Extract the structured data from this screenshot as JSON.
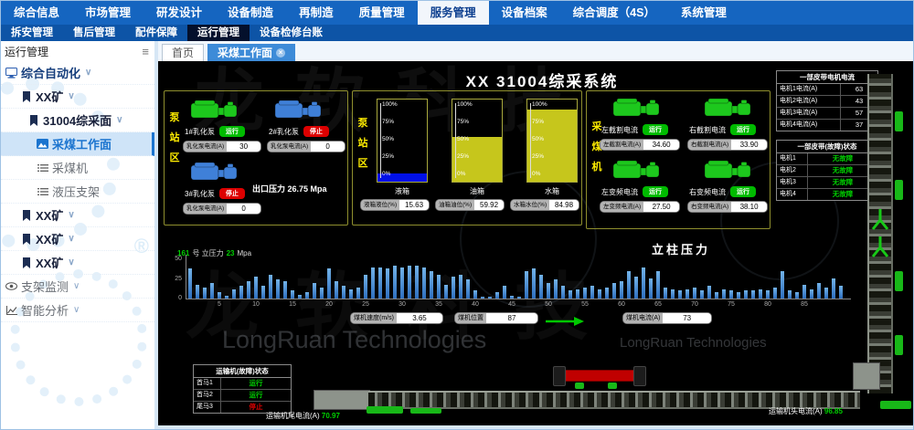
{
  "topnav": {
    "items": [
      "综合信息",
      "市场管理",
      "研发设计",
      "设备制造",
      "再制造",
      "质量管理",
      "服务管理",
      "设备档案",
      "综合调度（4S）",
      "系统管理"
    ],
    "active": "服务管理"
  },
  "subnav": {
    "items": [
      "拆安管理",
      "售后管理",
      "配件保障",
      "运行管理",
      "设备检修台账"
    ],
    "active": "运行管理"
  },
  "sidebar": {
    "title": "运行管理",
    "items": [
      {
        "label": "综合自动化",
        "icon": "monitor-icon",
        "level": 0,
        "expandable": true,
        "tone": "primary"
      },
      {
        "label": "XX矿",
        "icon": "bookmark-icon",
        "level": 1,
        "expandable": true,
        "tone": "dark"
      },
      {
        "label": "31004综采面",
        "icon": "bookmark-icon",
        "level": 2,
        "expandable": true,
        "tone": "dark"
      },
      {
        "label": "采煤工作面",
        "icon": "picture-icon",
        "level": 3,
        "selected": true,
        "tone": "primary"
      },
      {
        "label": "采煤机",
        "icon": "list-icon",
        "level": 3,
        "tone": "muted"
      },
      {
        "label": "液压支架",
        "icon": "list-icon",
        "level": 3,
        "tone": "muted"
      },
      {
        "label": "XX矿",
        "icon": "bookmark-icon",
        "level": 1,
        "expandable": true,
        "tone": "dark"
      },
      {
        "label": "XX矿",
        "icon": "bookmark-icon",
        "level": 1,
        "expandable": true,
        "tone": "dark"
      },
      {
        "label": "XX矿",
        "icon": "bookmark-icon",
        "level": 1,
        "expandable": true,
        "tone": "dark"
      },
      {
        "label": "支架监测",
        "icon": "eye-icon",
        "level": 0,
        "expandable": true,
        "tone": "muted"
      },
      {
        "label": "智能分析",
        "icon": "chart-icon",
        "level": 0,
        "expandable": true,
        "tone": "muted"
      }
    ]
  },
  "tabs": [
    {
      "label": "首页",
      "active": false,
      "closable": false
    },
    {
      "label": "采煤工作面",
      "active": true,
      "closable": true
    }
  ],
  "scada": {
    "title": "XX 31004综采系统",
    "pump_station": {
      "vlabel": "泵站区",
      "pumps": [
        {
          "name": "1#乳化泵",
          "status": "运行",
          "status_color": "#00bb00",
          "pump_color": "#1dc81d",
          "field_label": "乳化泵电流(A)",
          "value": "30"
        },
        {
          "name": "2#乳化泵",
          "status": "停止",
          "status_color": "#dd0000",
          "pump_color": "#3f80d8",
          "field_label": "乳化泵电流(A)",
          "value": "0"
        },
        {
          "name": "3#乳化泵",
          "status": "停止",
          "status_color": "#dd0000",
          "pump_color": "#3f80d8",
          "field_label": "乳化泵电流(A)",
          "value": "0"
        }
      ],
      "outlet_pressure": "出口压力 26.75 Mpa"
    },
    "tank_station": {
      "vlabel": "泵站区",
      "scale": [
        "100%",
        "75%",
        "50%",
        "25%",
        "0%"
      ],
      "tanks": [
        {
          "name": "液箱",
          "field_label": "液箱液位(%)",
          "value": "15.63",
          "fill_pct": 10,
          "fill_color": "#0010e8"
        },
        {
          "name": "油箱",
          "field_label": "油箱油位(%)",
          "value": "59.92",
          "fill_pct": 55,
          "fill_color": "#c6c61c"
        },
        {
          "name": "水箱",
          "field_label": "水箱水位(%)",
          "value": "84.98",
          "fill_pct": 88,
          "fill_color": "#c6c61c"
        }
      ]
    },
    "shearer_panel": {
      "vlabel": "采煤机",
      "motors": [
        {
          "name": "左截割电流",
          "status": "运行",
          "status_color": "#00bb00",
          "motor_color": "#1dc81d",
          "field_label": "左截割电流(A)",
          "value": "34.60"
        },
        {
          "name": "右截割电流",
          "status": "运行",
          "status_color": "#00bb00",
          "motor_color": "#1dc81d",
          "field_label": "右截割电流(A)",
          "value": "33.90"
        },
        {
          "name": "左变频电流",
          "status": "运行",
          "status_color": "#00bb00",
          "motor_color": "#1dc81d",
          "field_label": "左变频电流(A)",
          "value": "27.50"
        },
        {
          "name": "右变频电流",
          "status": "运行",
          "status_color": "#00bb00",
          "motor_color": "#1dc81d",
          "field_label": "右变频电流(A)",
          "value": "38.10"
        }
      ]
    },
    "belt_current_table": {
      "header": "一部皮带电机电流",
      "rows": [
        {
          "label": "电机1电流(A)",
          "value": "63"
        },
        {
          "label": "电机2电流(A)",
          "value": "43"
        },
        {
          "label": "电机3电流(A)",
          "value": "57"
        },
        {
          "label": "电机4电流(A)",
          "value": "37"
        }
      ]
    },
    "belt_status_table": {
      "header": "一部皮带(故障)状态",
      "rows": [
        {
          "label": "电机1",
          "status": "无故障",
          "color": "#00d000"
        },
        {
          "label": "电机2",
          "status": "无故障",
          "color": "#00d000"
        },
        {
          "label": "电机3",
          "status": "无故障",
          "color": "#00d000"
        },
        {
          "label": "电机4",
          "status": "无故障",
          "color": "#00d000"
        }
      ]
    },
    "shearer_fields": [
      {
        "label": "煤机速度(m/s)",
        "value": "3.65"
      },
      {
        "label": "煤机位置",
        "value": "87"
      },
      {
        "label": "煤机电流(A)",
        "value": "73"
      }
    ],
    "conveyor_status_table": {
      "header": "运输机(故障)状态",
      "rows": [
        {
          "label": "首马1",
          "status": "运行",
          "color": "#00d000"
        },
        {
          "label": "首马2",
          "status": "运行",
          "color": "#00d000"
        },
        {
          "label": "尾马3",
          "status": "停止",
          "color": "#e00000"
        }
      ]
    },
    "tail_current": {
      "label": "运输机尾电流(A)",
      "value": "70.97"
    },
    "head_current": {
      "label": "运输机头电流(A)",
      "value": "96.85"
    },
    "watermark": {
      "cn": "龙软科技",
      "en": "LongRuan Technologies",
      "reg": "®"
    }
  },
  "chart_data": {
    "type": "bar",
    "title": "立柱压力",
    "annotation": {
      "support_no": "161",
      "label": "号 立压力",
      "value": "23",
      "unit": "Mpa"
    },
    "ylabel": "压力(Mpa)",
    "y_ticks": [
      0,
      25,
      50
    ],
    "ylim": [
      0,
      50
    ],
    "x_ticks": [
      5,
      10,
      15,
      20,
      25,
      30,
      35,
      40,
      45,
      50,
      55,
      60,
      65,
      70,
      75,
      80,
      85
    ],
    "bar_color": "#3e86d2",
    "legend": null,
    "grid": false,
    "values": [
      38,
      18,
      14,
      20,
      8,
      3,
      12,
      16,
      22,
      28,
      16,
      30,
      24,
      22,
      10,
      5,
      8,
      20,
      14,
      38,
      22,
      16,
      12,
      14,
      30,
      40,
      40,
      38,
      42,
      40,
      42,
      42,
      40,
      35,
      30,
      18,
      28,
      30,
      24,
      10,
      2,
      2,
      8,
      16,
      3,
      2,
      35,
      38,
      30,
      20,
      24,
      16,
      10,
      12,
      14,
      16,
      12,
      14,
      20,
      22,
      35,
      28,
      40,
      25,
      35,
      14,
      12,
      10,
      12,
      14,
      10,
      16,
      8,
      12,
      10,
      8,
      10,
      10,
      12,
      10,
      14,
      35,
      10,
      8,
      18,
      12,
      20,
      14,
      25,
      16
    ]
  }
}
